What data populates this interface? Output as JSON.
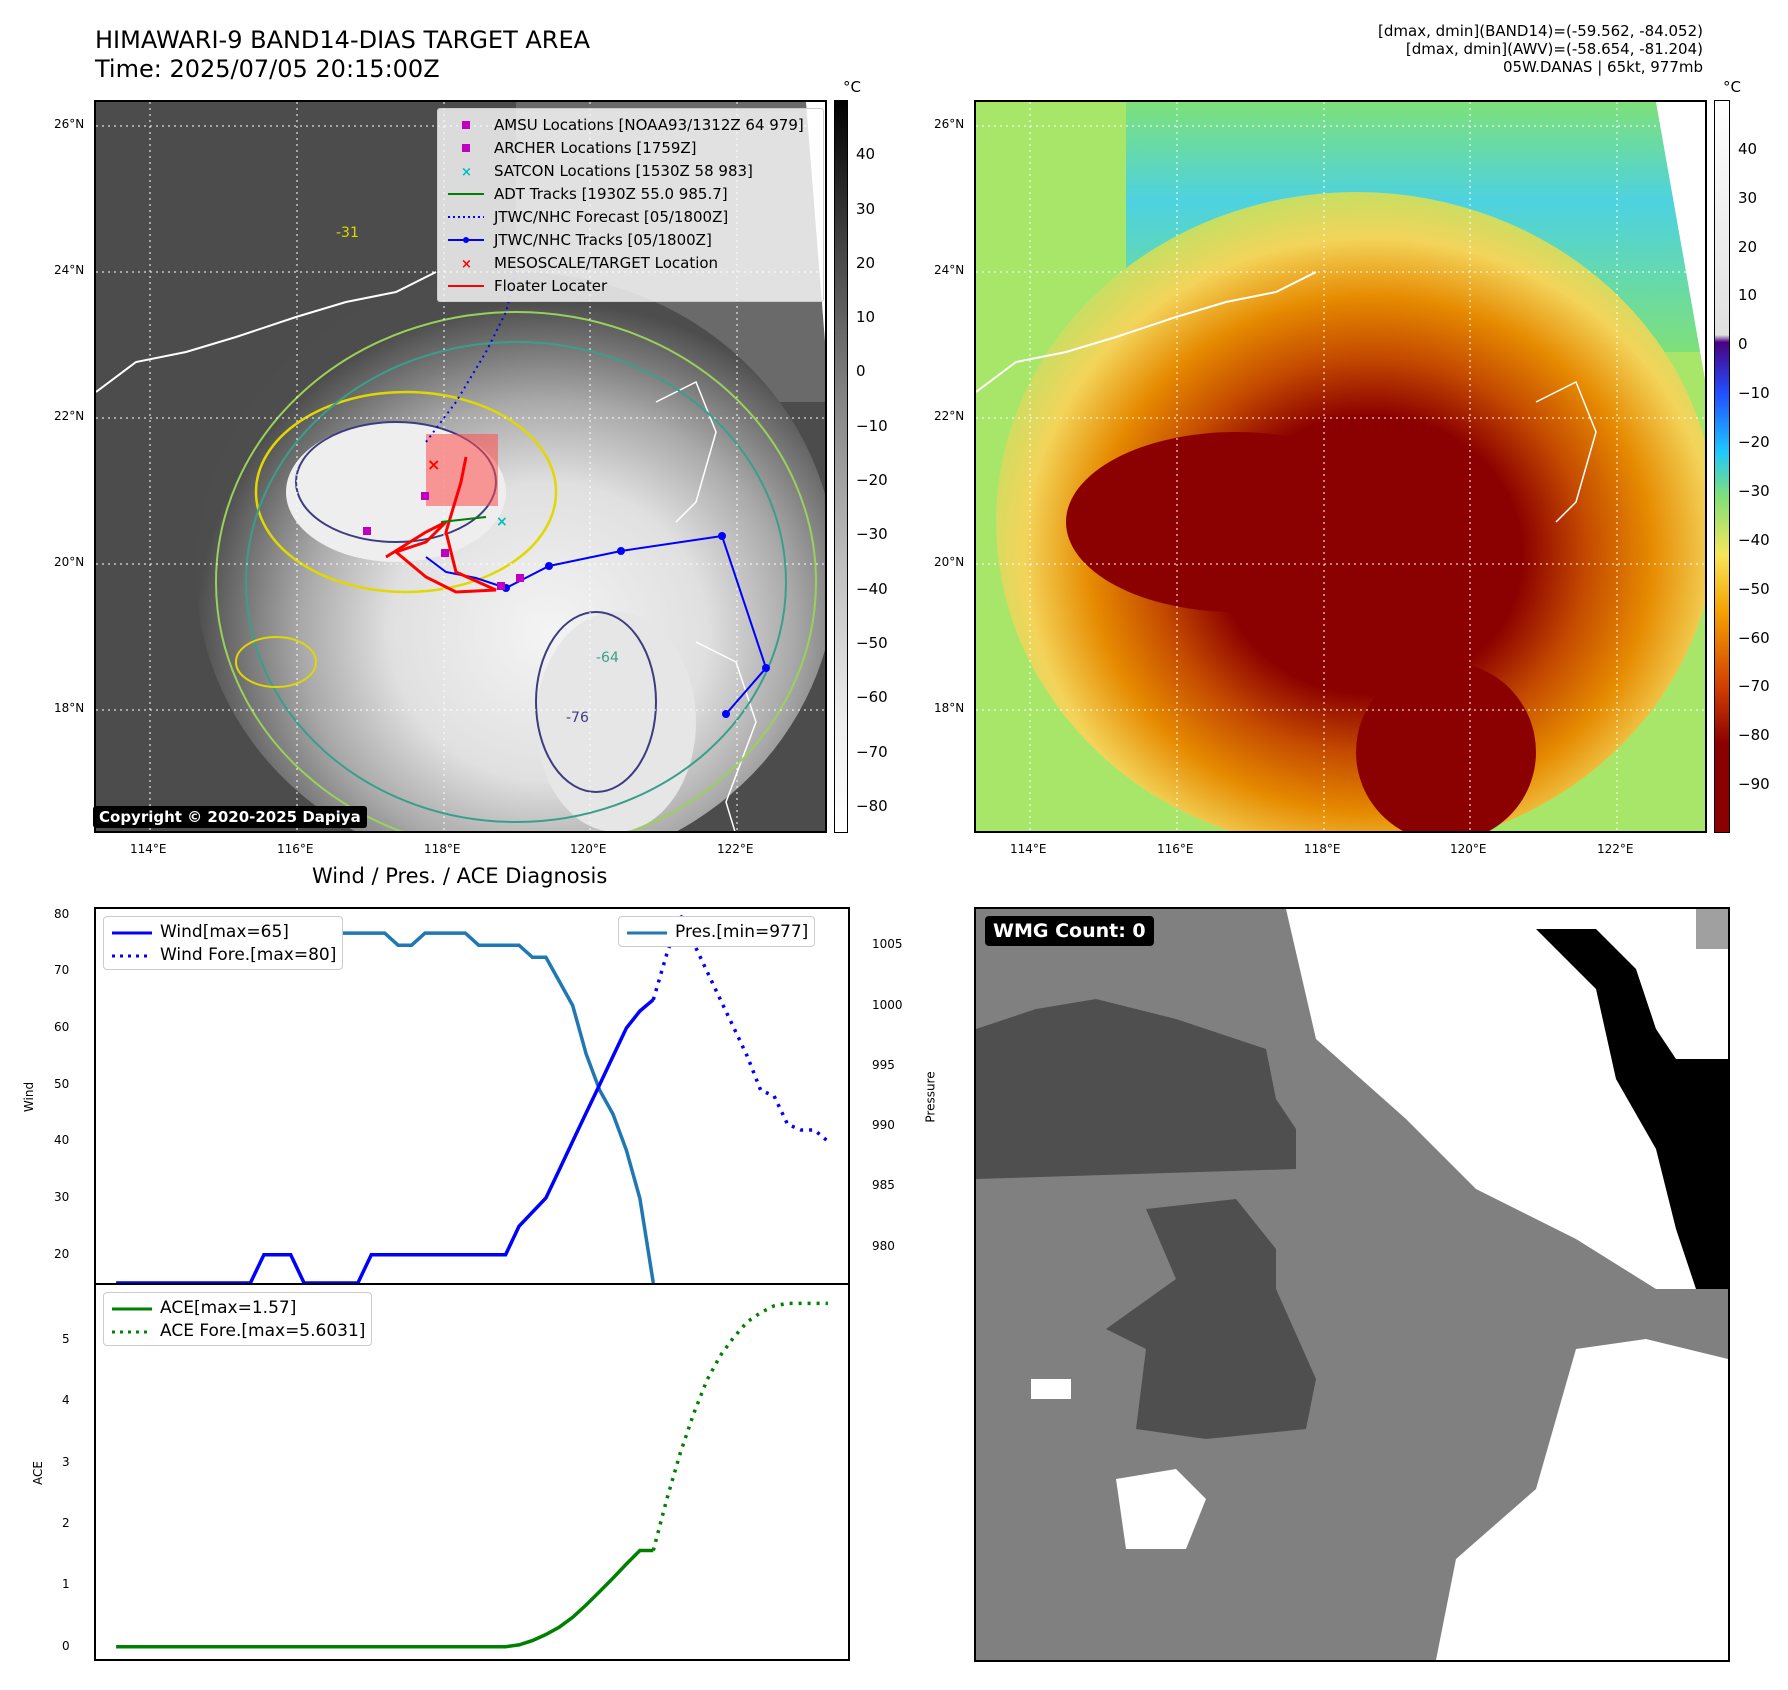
{
  "header": {
    "title_line1": "HIMAWARI-9 BAND14-DIAS TARGET AREA",
    "title_line2": "Time: 2025/07/05 20:15:00Z",
    "info_line1": "[dmax, dmin](BAND14)=(-59.562, -84.052)",
    "info_line2": "[dmax, dmin](AWV)=(-58.654, -81.204)",
    "info_line3": "05W.DANAS | 65kt, 977mb"
  },
  "map": {
    "lon_ticks": [
      "114°E",
      "116°E",
      "118°E",
      "120°E",
      "122°E"
    ],
    "lat_ticks": [
      "26°N",
      "24°N",
      "22°N",
      "20°N",
      "18°N"
    ],
    "copyright": "Copyright © 2020-2025 Dapiya",
    "colorbar_unit": "°C",
    "gray_colorbar_ticks": [
      "40",
      "30",
      "20",
      "10",
      "0",
      "−10",
      "−20",
      "−30",
      "−40",
      "−50",
      "−60",
      "−70",
      "−80"
    ],
    "color_colorbar_ticks": [
      "40",
      "30",
      "20",
      "10",
      "0",
      "−10",
      "−20",
      "−30",
      "−40",
      "−50",
      "−60",
      "−70",
      "−80",
      "−90"
    ],
    "contour_labels": [
      "-31",
      "-76",
      "-64"
    ]
  },
  "legend": {
    "items": [
      {
        "label": "AMSU Locations [NOAA93/1312Z 64 979]",
        "color": "#c000c0",
        "symbol": "square"
      },
      {
        "label": "ARCHER Locations [1759Z]",
        "color": "#c000c0",
        "symbol": "square"
      },
      {
        "label": "SATCON Locations [1530Z 58 983]",
        "color": "#00bcbc",
        "symbol": "x"
      },
      {
        "label": "ADT Tracks [1930Z 55.0 985.7]",
        "color": "#008000",
        "symbol": "line"
      },
      {
        "label": "JTWC/NHC Forecast [05/1800Z]",
        "color": "#0000ff",
        "symbol": "dotted"
      },
      {
        "label": "JTWC/NHC Tracks [05/1800Z]",
        "color": "#0000ff",
        "symbol": "line-dot"
      },
      {
        "label": "MESOSCALE/TARGET Location",
        "color": "#ff0000",
        "symbol": "x"
      },
      {
        "label": "Floater Locater",
        "color": "#ff0000",
        "symbol": "line"
      }
    ]
  },
  "diagnosis": {
    "title": "Wind / Pres. / ACE Diagnosis",
    "wind_ylabel": "Wind",
    "pres_ylabel": "Pressure",
    "ace_ylabel": "ACE",
    "wind_legend": [
      "Wind[max=65]",
      "Wind Fore.[max=80]"
    ],
    "pres_legend": "Pres.[min=977]",
    "ace_legend": [
      "ACE[max=1.57]",
      "ACE Fore.[max=5.6031]"
    ],
    "wind_ticks": [
      "80",
      "70",
      "60",
      "50",
      "40",
      "30",
      "20"
    ],
    "pres_ticks": [
      "1005",
      "1000",
      "995",
      "990",
      "985",
      "980"
    ],
    "ace_ticks": [
      "5",
      "4",
      "3",
      "2",
      "1",
      "0"
    ]
  },
  "wmg": {
    "label": "WMG Count: 0"
  },
  "chart_data": [
    {
      "type": "line",
      "title": "Wind / Pres. / ACE Diagnosis",
      "ylabel": "Wind",
      "ylim": [
        15,
        81
      ],
      "x": [
        0,
        1,
        2,
        3,
        4,
        5,
        6,
        7,
        8,
        9,
        10,
        11,
        12,
        13,
        14,
        15,
        16,
        17,
        18,
        19,
        20,
        21,
        22,
        23,
        24,
        25,
        26,
        27,
        28,
        29,
        30,
        31,
        32,
        33,
        34,
        35,
        36,
        37,
        38,
        39,
        40,
        41,
        42,
        43,
        44,
        45,
        46,
        47,
        48,
        49,
        50,
        51,
        52,
        53
      ],
      "series": [
        {
          "name": "Wind[max=65]",
          "x": [
            0,
            10,
            11,
            13,
            14,
            18,
            19,
            29,
            30,
            32,
            33,
            34,
            35,
            36,
            37,
            38,
            39,
            40
          ],
          "values": [
            15,
            15,
            20,
            20,
            15,
            15,
            20,
            20,
            25,
            30,
            35,
            40,
            45,
            50,
            55,
            60,
            63,
            65
          ]
        },
        {
          "name": "Wind Fore.[max=80]",
          "x": [
            40,
            41,
            42,
            43,
            44,
            45,
            46,
            47,
            48,
            49,
            50,
            51,
            52,
            53
          ],
          "values": [
            65,
            73,
            80,
            75,
            70,
            65,
            60,
            55,
            49,
            48,
            43,
            42,
            42,
            40
          ]
        }
      ]
    },
    {
      "type": "line",
      "ylabel": "Pressure",
      "ylim": [
        977,
        1008
      ],
      "series": [
        {
          "name": "Pres.[min=977]",
          "x": [
            0,
            4,
            5,
            6,
            7,
            8,
            9,
            10,
            11,
            12,
            13,
            14,
            15,
            16,
            17,
            18,
            19,
            20,
            21,
            22,
            23,
            24,
            25,
            26,
            27,
            28,
            29,
            30,
            31,
            32,
            33,
            34,
            35,
            36,
            37,
            38,
            39,
            40
          ],
          "values": [
            1007,
            1007,
            1005,
            1005,
            1005,
            1005,
            1005,
            1005,
            1005,
            1006,
            1006,
            1006,
            1006,
            1006,
            1006,
            1006,
            1006,
            1006,
            1005,
            1005,
            1006,
            1006,
            1006,
            1006,
            1005,
            1005,
            1005,
            1005,
            1004,
            1004,
            1002,
            1000,
            996,
            993,
            991,
            988,
            984,
            977
          ]
        }
      ]
    },
    {
      "type": "line",
      "ylabel": "ACE",
      "ylim": [
        -0.2,
        5.9
      ],
      "series": [
        {
          "name": "ACE[max=1.57]",
          "x": [
            0,
            29,
            30,
            31,
            32,
            33,
            34,
            35,
            36,
            37,
            38,
            39,
            40
          ],
          "values": [
            0,
            0,
            0.03,
            0.1,
            0.2,
            0.32,
            0.48,
            0.68,
            0.9,
            1.12,
            1.35,
            1.57,
            1.57
          ]
        },
        {
          "name": "ACE Fore.[max=5.6031]",
          "x": [
            40,
            41,
            42,
            43,
            44,
            45,
            46,
            47,
            48,
            49,
            50,
            51,
            52,
            53
          ],
          "values": [
            1.57,
            2.4,
            3.15,
            3.8,
            4.35,
            4.75,
            5.05,
            5.3,
            5.45,
            5.56,
            5.6,
            5.6,
            5.6,
            5.6
          ]
        }
      ]
    }
  ]
}
